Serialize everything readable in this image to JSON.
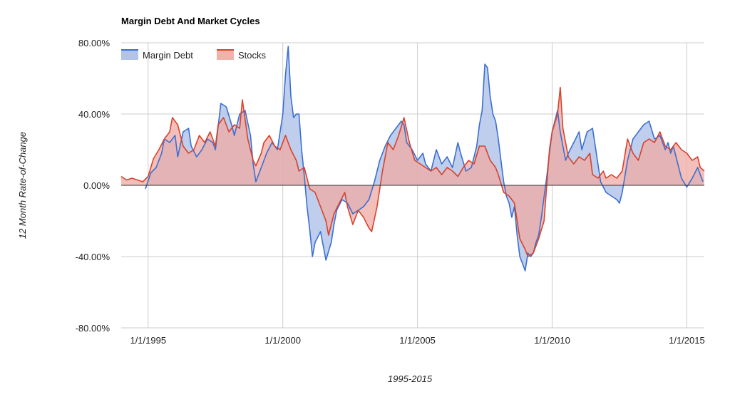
{
  "chart_data": {
    "type": "area",
    "title": "Margin Debt And Market Cycles",
    "xlabel": "1995-2015",
    "ylabel": "12 Month Rate-of-Change",
    "x_range": [
      1994.0,
      2015.65
    ],
    "ylim": [
      -80,
      80
    ],
    "y_ticks": [
      {
        "value": 80,
        "label": "80.00%"
      },
      {
        "value": 40,
        "label": "40.00%"
      },
      {
        "value": 0,
        "label": "0.00%"
      },
      {
        "value": -40,
        "label": "-40.00%"
      },
      {
        "value": -80,
        "label": "-80.00%"
      }
    ],
    "x_ticks": [
      {
        "value": 1995.0,
        "label": "1/1/1995"
      },
      {
        "value": 2000.0,
        "label": "1/1/2000"
      },
      {
        "value": 2005.0,
        "label": "1/1/2005"
      },
      {
        "value": 2010.0,
        "label": "1/1/2010"
      },
      {
        "value": 2015.0,
        "label": "1/1/2015"
      }
    ],
    "legend_position": "top-left",
    "series": [
      {
        "name": "Margin Debt",
        "color": "#3c6fd1",
        "fill": "#a8bde6",
        "points": [
          [
            1994.9,
            -2
          ],
          [
            1995.1,
            7
          ],
          [
            1995.3,
            10
          ],
          [
            1995.5,
            18
          ],
          [
            1995.6,
            26
          ],
          [
            1995.8,
            24
          ],
          [
            1996.0,
            28
          ],
          [
            1996.1,
            16
          ],
          [
            1996.3,
            30
          ],
          [
            1996.5,
            32
          ],
          [
            1996.6,
            22
          ],
          [
            1996.8,
            16
          ],
          [
            1997.0,
            20
          ],
          [
            1997.2,
            26
          ],
          [
            1997.4,
            24
          ],
          [
            1997.5,
            20
          ],
          [
            1997.7,
            46
          ],
          [
            1997.9,
            44
          ],
          [
            1998.1,
            34
          ],
          [
            1998.2,
            28
          ],
          [
            1998.4,
            40
          ],
          [
            1998.6,
            42
          ],
          [
            1998.8,
            28
          ],
          [
            1998.9,
            12
          ],
          [
            1999.0,
            2
          ],
          [
            1999.2,
            10
          ],
          [
            1999.4,
            18
          ],
          [
            1999.6,
            24
          ],
          [
            1999.8,
            20
          ],
          [
            2000.0,
            40
          ],
          [
            2000.1,
            62
          ],
          [
            2000.2,
            78
          ],
          [
            2000.3,
            50
          ],
          [
            2000.4,
            38
          ],
          [
            2000.5,
            40
          ],
          [
            2000.6,
            40
          ],
          [
            2000.7,
            20
          ],
          [
            2000.8,
            5
          ],
          [
            2000.9,
            -12
          ],
          [
            2001.0,
            -25
          ],
          [
            2001.1,
            -40
          ],
          [
            2001.2,
            -32
          ],
          [
            2001.4,
            -26
          ],
          [
            2001.5,
            -34
          ],
          [
            2001.6,
            -42
          ],
          [
            2001.8,
            -32
          ],
          [
            2001.9,
            -22
          ],
          [
            2002.0,
            -14
          ],
          [
            2002.2,
            -8
          ],
          [
            2002.4,
            -10
          ],
          [
            2002.6,
            -16
          ],
          [
            2002.8,
            -14
          ],
          [
            2003.0,
            -12
          ],
          [
            2003.2,
            -8
          ],
          [
            2003.4,
            2
          ],
          [
            2003.6,
            14
          ],
          [
            2003.8,
            22
          ],
          [
            2004.0,
            28
          ],
          [
            2004.2,
            32
          ],
          [
            2004.4,
            36
          ],
          [
            2004.5,
            34
          ],
          [
            2004.6,
            24
          ],
          [
            2004.8,
            20
          ],
          [
            2005.0,
            14
          ],
          [
            2005.2,
            18
          ],
          [
            2005.3,
            12
          ],
          [
            2005.5,
            8
          ],
          [
            2005.7,
            20
          ],
          [
            2005.9,
            12
          ],
          [
            2006.1,
            16
          ],
          [
            2006.3,
            10
          ],
          [
            2006.5,
            24
          ],
          [
            2006.6,
            18
          ],
          [
            2006.8,
            8
          ],
          [
            2007.0,
            10
          ],
          [
            2007.2,
            22
          ],
          [
            2007.3,
            34
          ],
          [
            2007.4,
            42
          ],
          [
            2007.5,
            68
          ],
          [
            2007.6,
            66
          ],
          [
            2007.7,
            50
          ],
          [
            2007.8,
            40
          ],
          [
            2007.9,
            36
          ],
          [
            2008.0,
            26
          ],
          [
            2008.1,
            14
          ],
          [
            2008.2,
            2
          ],
          [
            2008.3,
            -6
          ],
          [
            2008.4,
            -10
          ],
          [
            2008.5,
            -18
          ],
          [
            2008.6,
            -12
          ],
          [
            2008.7,
            -28
          ],
          [
            2008.8,
            -40
          ],
          [
            2008.9,
            -44
          ],
          [
            2009.0,
            -48
          ],
          [
            2009.1,
            -38
          ],
          [
            2009.2,
            -40
          ],
          [
            2009.3,
            -38
          ],
          [
            2009.4,
            -32
          ],
          [
            2009.5,
            -28
          ],
          [
            2009.6,
            -18
          ],
          [
            2009.8,
            5
          ],
          [
            2009.9,
            18
          ],
          [
            2010.0,
            30
          ],
          [
            2010.1,
            36
          ],
          [
            2010.2,
            42
          ],
          [
            2010.3,
            30
          ],
          [
            2010.4,
            22
          ],
          [
            2010.5,
            14
          ],
          [
            2010.6,
            18
          ],
          [
            2010.8,
            24
          ],
          [
            2011.0,
            30
          ],
          [
            2011.1,
            20
          ],
          [
            2011.3,
            30
          ],
          [
            2011.5,
            32
          ],
          [
            2011.6,
            22
          ],
          [
            2011.8,
            2
          ],
          [
            2012.0,
            -4
          ],
          [
            2012.2,
            -6
          ],
          [
            2012.4,
            -8
          ],
          [
            2012.5,
            -10
          ],
          [
            2012.6,
            -4
          ],
          [
            2012.8,
            14
          ],
          [
            2013.0,
            26
          ],
          [
            2013.2,
            30
          ],
          [
            2013.4,
            34
          ],
          [
            2013.6,
            36
          ],
          [
            2013.8,
            26
          ],
          [
            2014.0,
            28
          ],
          [
            2014.2,
            20
          ],
          [
            2014.3,
            24
          ],
          [
            2014.4,
            18
          ],
          [
            2014.5,
            22
          ],
          [
            2014.6,
            16
          ],
          [
            2014.7,
            10
          ],
          [
            2014.8,
            4
          ],
          [
            2015.0,
            -1
          ],
          [
            2015.2,
            4
          ],
          [
            2015.4,
            10
          ],
          [
            2015.6,
            2
          ]
        ]
      },
      {
        "name": "Stocks",
        "color": "#d7432c",
        "fill": "#efaaa3",
        "points": [
          [
            1994.0,
            5
          ],
          [
            1994.2,
            3
          ],
          [
            1994.4,
            4
          ],
          [
            1994.6,
            3
          ],
          [
            1994.8,
            2
          ],
          [
            1995.0,
            5
          ],
          [
            1995.2,
            15
          ],
          [
            1995.4,
            20
          ],
          [
            1995.6,
            26
          ],
          [
            1995.8,
            30
          ],
          [
            1995.9,
            38
          ],
          [
            1996.1,
            34
          ],
          [
            1996.3,
            22
          ],
          [
            1996.5,
            18
          ],
          [
            1996.7,
            20
          ],
          [
            1996.9,
            28
          ],
          [
            1997.1,
            24
          ],
          [
            1997.3,
            30
          ],
          [
            1997.5,
            22
          ],
          [
            1997.6,
            34
          ],
          [
            1997.8,
            38
          ],
          [
            1998.0,
            30
          ],
          [
            1998.2,
            34
          ],
          [
            1998.4,
            32
          ],
          [
            1998.5,
            48
          ],
          [
            1998.7,
            26
          ],
          [
            1998.9,
            14
          ],
          [
            1999.0,
            11
          ],
          [
            1999.2,
            18
          ],
          [
            1999.3,
            24
          ],
          [
            1999.5,
            28
          ],
          [
            1999.7,
            22
          ],
          [
            1999.9,
            20
          ],
          [
            2000.1,
            28
          ],
          [
            2000.3,
            20
          ],
          [
            2000.5,
            14
          ],
          [
            2000.6,
            8
          ],
          [
            2000.8,
            10
          ],
          [
            2001.0,
            -2
          ],
          [
            2001.2,
            -4
          ],
          [
            2001.4,
            -12
          ],
          [
            2001.6,
            -20
          ],
          [
            2001.7,
            -28
          ],
          [
            2001.9,
            -16
          ],
          [
            2002.1,
            -10
          ],
          [
            2002.3,
            -4
          ],
          [
            2002.4,
            -12
          ],
          [
            2002.6,
            -22
          ],
          [
            2002.8,
            -14
          ],
          [
            2003.0,
            -18
          ],
          [
            2003.2,
            -24
          ],
          [
            2003.3,
            -26
          ],
          [
            2003.5,
            -12
          ],
          [
            2003.7,
            8
          ],
          [
            2003.9,
            24
          ],
          [
            2004.1,
            20
          ],
          [
            2004.3,
            28
          ],
          [
            2004.5,
            38
          ],
          [
            2004.7,
            24
          ],
          [
            2004.9,
            14
          ],
          [
            2005.1,
            12
          ],
          [
            2005.3,
            10
          ],
          [
            2005.5,
            8
          ],
          [
            2005.7,
            10
          ],
          [
            2005.9,
            6
          ],
          [
            2006.1,
            10
          ],
          [
            2006.3,
            8
          ],
          [
            2006.5,
            5
          ],
          [
            2006.7,
            10
          ],
          [
            2006.9,
            14
          ],
          [
            2007.1,
            12
          ],
          [
            2007.3,
            22
          ],
          [
            2007.5,
            22
          ],
          [
            2007.7,
            14
          ],
          [
            2007.9,
            10
          ],
          [
            2008.0,
            6
          ],
          [
            2008.2,
            -4
          ],
          [
            2008.4,
            -6
          ],
          [
            2008.6,
            -10
          ],
          [
            2008.8,
            -30
          ],
          [
            2009.0,
            -36
          ],
          [
            2009.1,
            -40
          ],
          [
            2009.3,
            -38
          ],
          [
            2009.5,
            -30
          ],
          [
            2009.7,
            -20
          ],
          [
            2009.9,
            20
          ],
          [
            2010.0,
            30
          ],
          [
            2010.2,
            40
          ],
          [
            2010.3,
            55
          ],
          [
            2010.4,
            32
          ],
          [
            2010.6,
            16
          ],
          [
            2010.8,
            12
          ],
          [
            2011.0,
            16
          ],
          [
            2011.2,
            14
          ],
          [
            2011.4,
            18
          ],
          [
            2011.5,
            6
          ],
          [
            2011.7,
            4
          ],
          [
            2011.9,
            8
          ],
          [
            2012.0,
            4
          ],
          [
            2012.2,
            6
          ],
          [
            2012.4,
            4
          ],
          [
            2012.6,
            8
          ],
          [
            2012.8,
            26
          ],
          [
            2013.0,
            18
          ],
          [
            2013.2,
            14
          ],
          [
            2013.4,
            24
          ],
          [
            2013.6,
            26
          ],
          [
            2013.8,
            24
          ],
          [
            2014.0,
            30
          ],
          [
            2014.2,
            22
          ],
          [
            2014.4,
            20
          ],
          [
            2014.6,
            24
          ],
          [
            2014.8,
            20
          ],
          [
            2015.0,
            18
          ],
          [
            2015.2,
            14
          ],
          [
            2015.4,
            16
          ],
          [
            2015.5,
            10
          ],
          [
            2015.65,
            8
          ]
        ]
      }
    ]
  }
}
